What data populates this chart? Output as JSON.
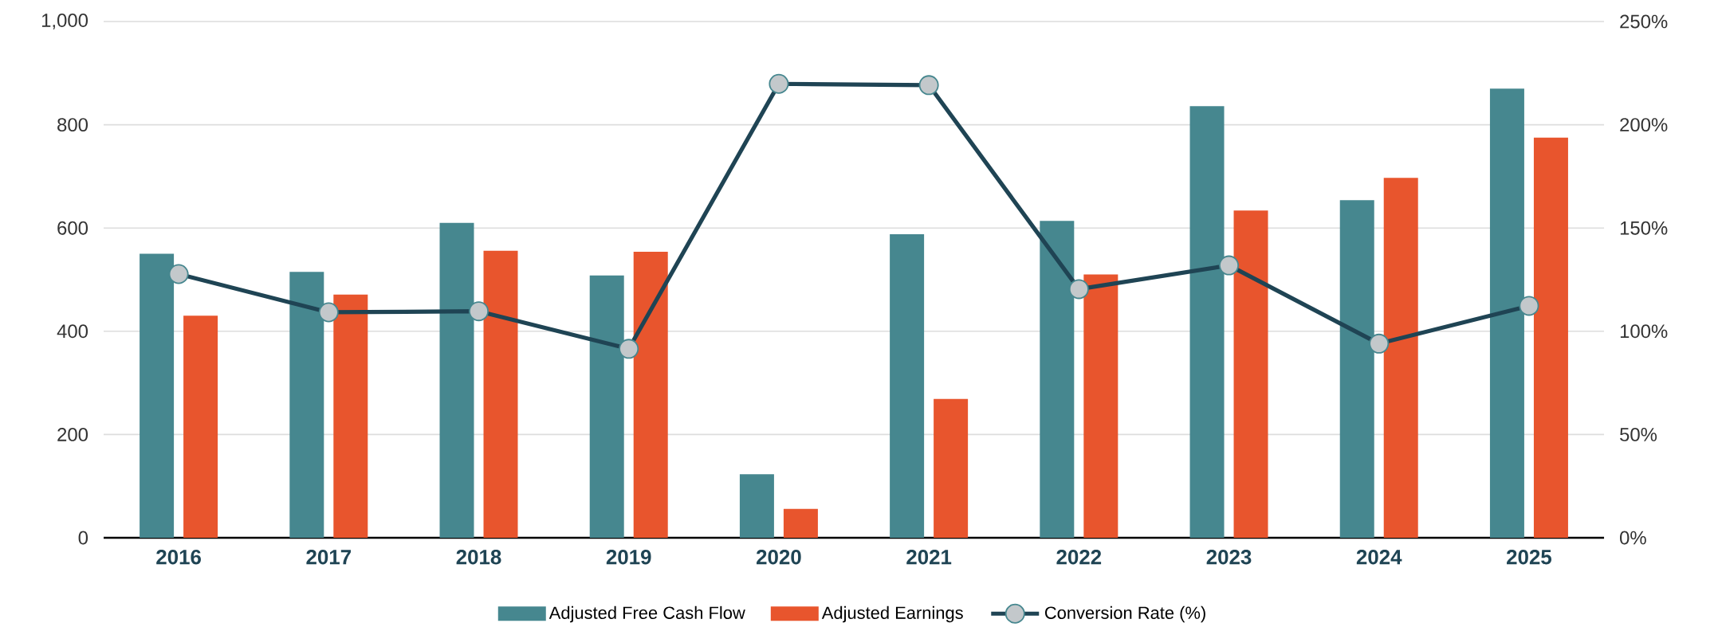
{
  "chart_data": {
    "type": "bar",
    "categories": [
      "2016",
      "2017",
      "2018",
      "2019",
      "2020",
      "2021",
      "2022",
      "2023",
      "2024",
      "2025"
    ],
    "series": [
      {
        "name": "Adjusted Free Cash Flow",
        "color": "#46878f",
        "values": [
          550,
          515,
          610,
          508,
          123,
          588,
          614,
          836,
          654,
          870
        ]
      },
      {
        "name": "Adjusted Earnings",
        "color": "#e8552d",
        "values": [
          430,
          471,
          556,
          554,
          56,
          269,
          510,
          634,
          697,
          775
        ]
      },
      {
        "name": "Conversion Rate (%)",
        "type": "line",
        "axis": "y2",
        "color": "#1f4454",
        "marker": "circle",
        "values": [
          127.7,
          109.2,
          109.7,
          91.5,
          219.8,
          219.2,
          120.4,
          131.9,
          94,
          112.3
        ]
      }
    ],
    "ylim": [
      0,
      1000
    ],
    "yticks": [
      0,
      200,
      400,
      600,
      800,
      {
        "value": 1000,
        "label": "1,000"
      }
    ],
    "y2lim": [
      0,
      250
    ],
    "y2ticks": [
      {
        "value": 0,
        "label": "0%"
      },
      {
        "value": 50,
        "label": "50%"
      },
      {
        "value": 100,
        "label": "100%"
      },
      {
        "value": 150,
        "label": "150%"
      },
      {
        "value": 200,
        "label": "200%"
      },
      {
        "value": 250,
        "label": "250%"
      }
    ],
    "grid": "y",
    "legend": "bottom"
  }
}
